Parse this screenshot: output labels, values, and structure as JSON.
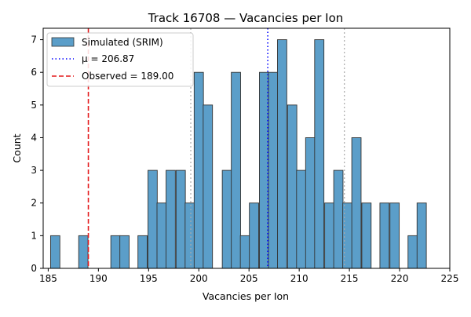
{
  "chart_data": {
    "type": "bar",
    "title": "Track 16708 — Vacancies per Ion",
    "xlabel": "Vacancies per Ion",
    "ylabel": "Count",
    "xlim": [
      184.5,
      225
    ],
    "ylim": [
      0,
      7.35
    ],
    "xticks": [
      185,
      190,
      195,
      200,
      205,
      210,
      215,
      220,
      225
    ],
    "yticks": [
      0,
      1,
      2,
      3,
      4,
      5,
      6,
      7
    ],
    "bin_width": 0.925,
    "bins": [
      {
        "x": 185.7,
        "count": 1
      },
      {
        "x": 188.5,
        "count": 1
      },
      {
        "x": 191.7,
        "count": 1
      },
      {
        "x": 192.6,
        "count": 1
      },
      {
        "x": 194.4,
        "count": 1
      },
      {
        "x": 195.4,
        "count": 3
      },
      {
        "x": 196.3,
        "count": 2
      },
      {
        "x": 197.2,
        "count": 3
      },
      {
        "x": 198.2,
        "count": 3
      },
      {
        "x": 199.1,
        "count": 2
      },
      {
        "x": 200.0,
        "count": 6
      },
      {
        "x": 200.9,
        "count": 5
      },
      {
        "x": 202.8,
        "count": 3
      },
      {
        "x": 203.7,
        "count": 6
      },
      {
        "x": 204.6,
        "count": 1
      },
      {
        "x": 205.5,
        "count": 2
      },
      {
        "x": 206.5,
        "count": 6
      },
      {
        "x": 207.4,
        "count": 6
      },
      {
        "x": 208.3,
        "count": 7
      },
      {
        "x": 209.3,
        "count": 5
      },
      {
        "x": 210.2,
        "count": 3
      },
      {
        "x": 211.1,
        "count": 4
      },
      {
        "x": 212.0,
        "count": 7
      },
      {
        "x": 213.0,
        "count": 2
      },
      {
        "x": 213.9,
        "count": 3
      },
      {
        "x": 214.8,
        "count": 2
      },
      {
        "x": 215.7,
        "count": 4
      },
      {
        "x": 216.7,
        "count": 2
      },
      {
        "x": 218.5,
        "count": 2
      },
      {
        "x": 219.5,
        "count": 2
      },
      {
        "x": 221.3,
        "count": 1
      },
      {
        "x": 222.2,
        "count": 2
      }
    ],
    "mean_line": {
      "value": 206.87,
      "label": "μ = 206.87",
      "color": "#0000ff"
    },
    "observed_line": {
      "value": 189.0,
      "label": "Observed = 189.00",
      "color": "#e41a1c"
    },
    "sigma_lines": [
      199.2,
      214.5
    ],
    "series_label": "Simulated (SRIM)",
    "bar_color": "#5b9ec9",
    "legend_position": "upper-left",
    "grid": false
  }
}
